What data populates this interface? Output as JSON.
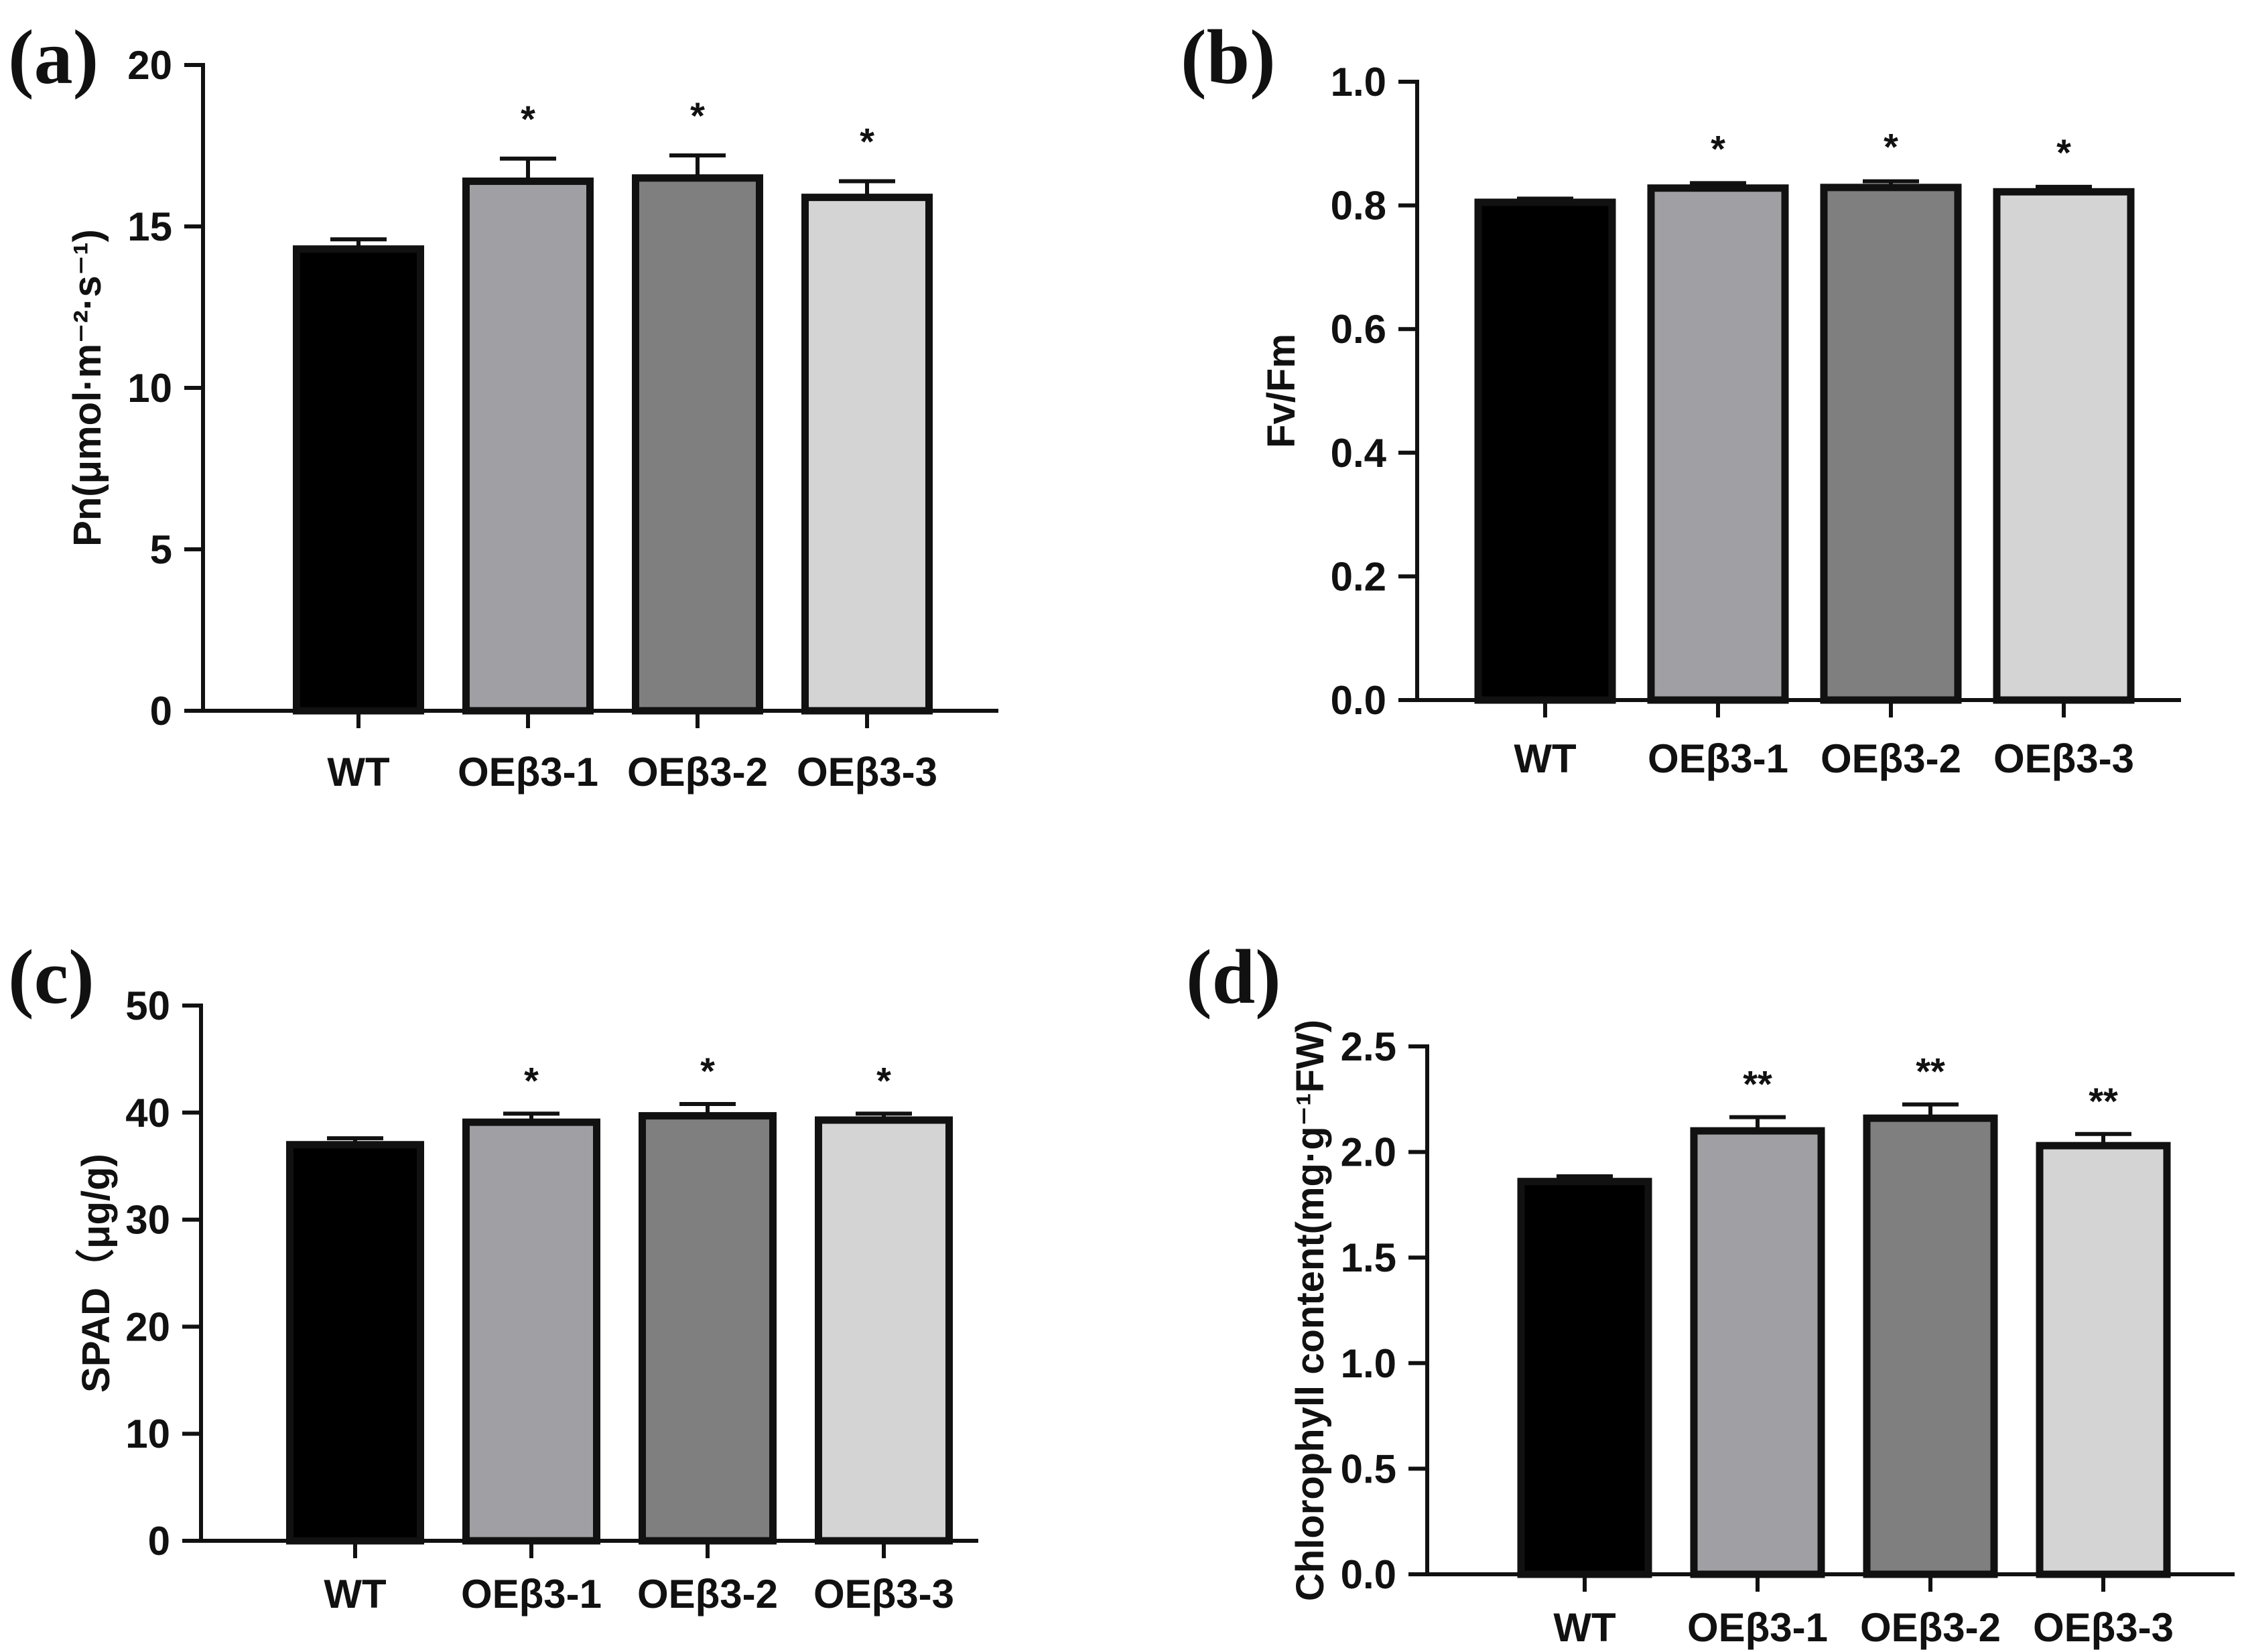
{
  "chart_data": [
    {
      "panel": "(a)",
      "type": "bar",
      "ylabel": "Pn(μmol·m⁻²·s⁻¹)",
      "categories": [
        "WT",
        "OEβ3-1",
        "OEβ3-2",
        "OEβ3-3"
      ],
      "values": [
        14.3,
        16.4,
        16.5,
        15.9
      ],
      "errors": [
        0.3,
        0.7,
        0.7,
        0.5
      ],
      "significance": [
        "",
        "*",
        "*",
        "*"
      ],
      "colors": [
        "#000000",
        "#a0a0a4",
        "#7f7f7f",
        "#d4d4d4"
      ],
      "ylim": [
        0,
        20
      ],
      "yticks": [
        0,
        5,
        10,
        15,
        20
      ],
      "ytick_labels": [
        "0",
        "5",
        "10",
        "15",
        "20"
      ]
    },
    {
      "panel": "(b)",
      "type": "bar",
      "ylabel": "Fv/Fm",
      "categories": [
        "WT",
        "OEβ3-1",
        "OEβ3-2",
        "OEβ3-3"
      ],
      "values": [
        0.805,
        0.828,
        0.829,
        0.822
      ],
      "errors": [
        0.006,
        0.008,
        0.01,
        0.008
      ],
      "significance": [
        "",
        "*",
        "*",
        "*"
      ],
      "colors": [
        "#000000",
        "#a0a0a4",
        "#7f7f7f",
        "#d4d4d4"
      ],
      "ylim": [
        0,
        1.0
      ],
      "yticks": [
        0,
        0.2,
        0.4,
        0.6,
        0.8,
        1.0
      ],
      "ytick_labels": [
        "0.0",
        "0.2",
        "0.4",
        "0.6",
        "0.8",
        "1.0"
      ]
    },
    {
      "panel": "(c)",
      "type": "bar",
      "ylabel": "SPAD（μg/g)",
      "categories": [
        "WT",
        "OEβ3-1",
        "OEβ3-2",
        "OEβ3-3"
      ],
      "values": [
        37.0,
        39.1,
        39.7,
        39.3
      ],
      "errors": [
        0.6,
        0.8,
        1.1,
        0.6
      ],
      "significance": [
        "",
        "*",
        "*",
        "*"
      ],
      "colors": [
        "#000000",
        "#a0a0a4",
        "#7f7f7f",
        "#d4d4d4"
      ],
      "ylim": [
        0,
        50
      ],
      "yticks": [
        0,
        10,
        20,
        30,
        40,
        50
      ],
      "ytick_labels": [
        "0",
        "10",
        "20",
        "30",
        "40",
        "50"
      ]
    },
    {
      "panel": "(d)",
      "type": "bar",
      "ylabel": "Chlorophyll content(mg·g⁻¹FW)",
      "categories": [
        "WT",
        "OEβ3-1",
        "OEβ3-2",
        "OEβ3-3"
      ],
      "values": [
        1.86,
        2.1,
        2.16,
        2.03
      ],
      "errors": [
        0.025,
        0.065,
        0.065,
        0.055
      ],
      "significance": [
        "",
        "**",
        "**",
        "**"
      ],
      "colors": [
        "#000000",
        "#a0a0a4",
        "#7f7f7f",
        "#d4d4d4"
      ],
      "ylim": [
        0,
        2.5
      ],
      "yticks": [
        0,
        0.5,
        1.0,
        1.5,
        2.0,
        2.5
      ],
      "ytick_labels": [
        "0.0",
        "0.5",
        "1.0",
        "1.5",
        "2.0",
        "2.5"
      ]
    }
  ]
}
